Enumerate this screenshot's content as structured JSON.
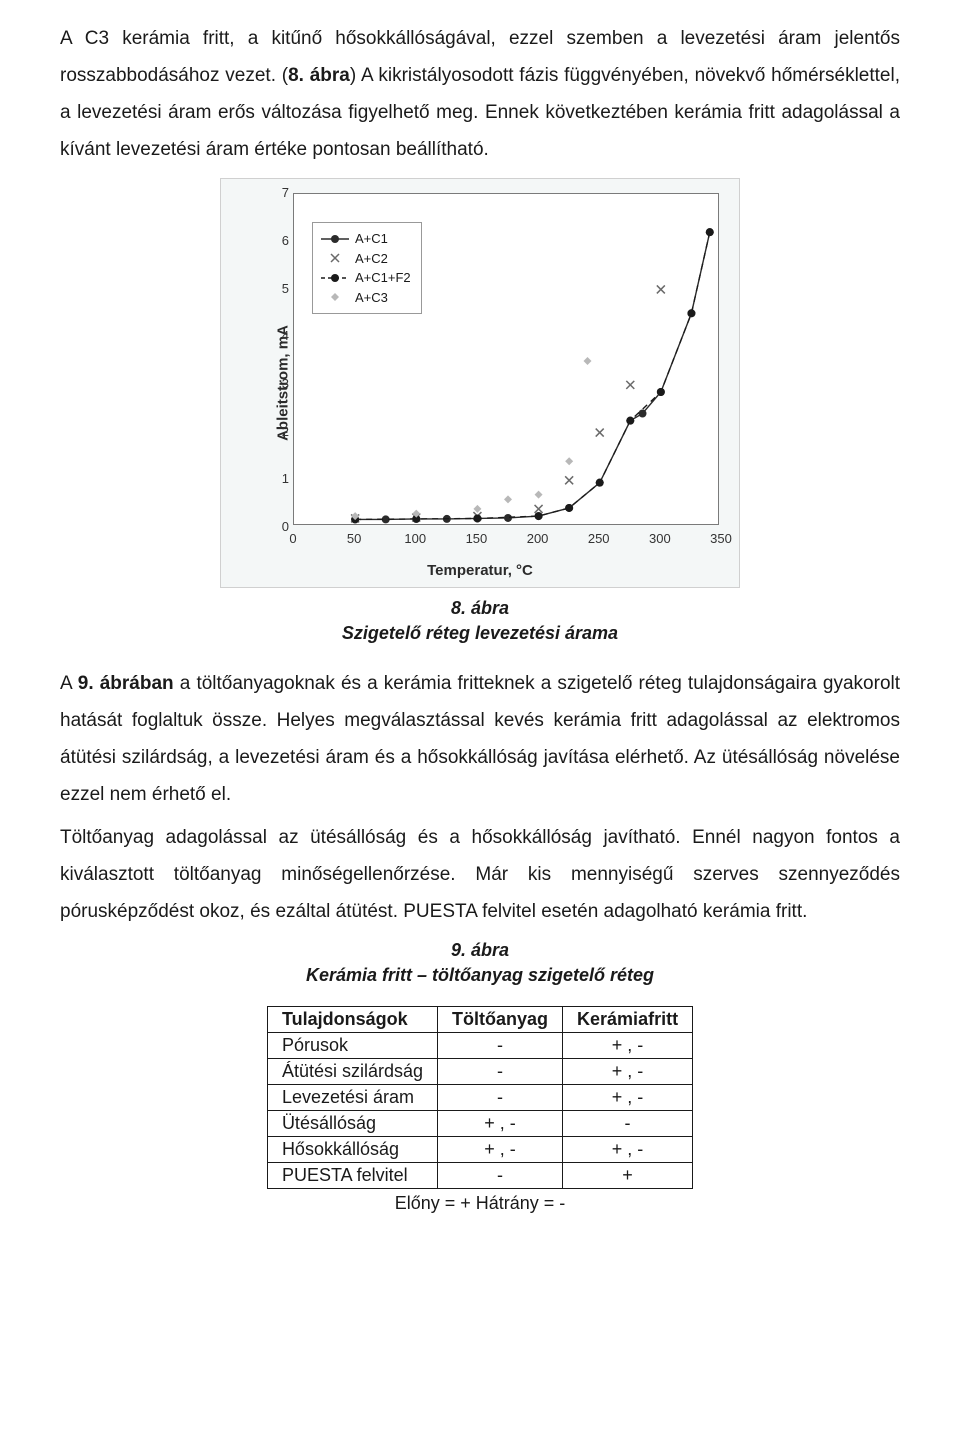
{
  "para1_pre": "A C3 kerámia fritt, a kitűnő hősokkállóságával, ezzel szemben a levezetési áram jelentős rosszabbodásához vezet. (",
  "para1_bold": "8. ábra",
  "para1_post": ") A kikristályosodott fázis függvényében, növekvő hőmérséklettel, a levezetési áram  erős változása figyelhető meg. Ennek következtében kerámia fritt adagolással a kívánt levezetési áram értéke pontosan beállítható.",
  "chart": {
    "type": "scatter-line",
    "background_color": "#f4f7f7",
    "plot_background": "#ffffff",
    "border_color": "#7a7a7a",
    "xlim": [
      0,
      350
    ],
    "ylim": [
      0,
      7
    ],
    "xticks": [
      0,
      50,
      100,
      150,
      200,
      250,
      300,
      350
    ],
    "yticks": [
      0,
      1,
      2,
      3,
      4,
      5,
      6,
      7
    ],
    "xlabel": "Temperatur, °C",
    "ylabel": "Ableitstrom, mA",
    "label_fontsize": 15,
    "tick_fontsize": 13,
    "series": [
      {
        "name": "A+C1",
        "marker": "filled-circle",
        "line": "solid",
        "color": "#2b2b2b",
        "points": [
          [
            50,
            0.18
          ],
          [
            75,
            0.18
          ],
          [
            100,
            0.19
          ],
          [
            125,
            0.19
          ],
          [
            150,
            0.2
          ],
          [
            175,
            0.21
          ],
          [
            200,
            0.25
          ],
          [
            225,
            0.42
          ],
          [
            250,
            0.95
          ],
          [
            275,
            2.25
          ],
          [
            285,
            2.4
          ],
          [
            300,
            2.85
          ],
          [
            325,
            4.5
          ],
          [
            340,
            6.2
          ]
        ]
      },
      {
        "name": "A+C2",
        "marker": "x",
        "line": "none",
        "color": "#6a6a6a",
        "points": [
          [
            50,
            0.2
          ],
          [
            100,
            0.22
          ],
          [
            150,
            0.25
          ],
          [
            200,
            0.4
          ],
          [
            225,
            1.0
          ],
          [
            250,
            2.0
          ],
          [
            275,
            3.0
          ],
          [
            300,
            5.0
          ]
        ]
      },
      {
        "name": "A+C1+F2",
        "marker": "filled-circle",
        "line": "dashed",
        "color": "#1a1a1a",
        "points": [
          [
            50,
            0.18
          ],
          [
            100,
            0.19
          ],
          [
            150,
            0.2
          ],
          [
            200,
            0.25
          ],
          [
            225,
            0.42
          ],
          [
            250,
            0.95
          ],
          [
            275,
            2.25
          ],
          [
            300,
            2.85
          ],
          [
            325,
            4.5
          ],
          [
            340,
            6.2
          ]
        ]
      },
      {
        "name": "A+C3",
        "marker": "diamond",
        "line": "none",
        "color": "#b8b8b8",
        "points": [
          [
            50,
            0.25
          ],
          [
            100,
            0.3
          ],
          [
            150,
            0.4
          ],
          [
            175,
            0.6
          ],
          [
            200,
            0.7
          ],
          [
            225,
            1.4
          ],
          [
            240,
            3.5
          ]
        ]
      }
    ],
    "legend": {
      "position": "upper-left-inside-plot",
      "border_color": "#999999",
      "background": "#ffffff"
    }
  },
  "caption1_line1": "8. ábra",
  "caption1_line2": "Szigetelő réteg levezetési árama",
  "para2_pre": "A ",
  "para2_bold": "9. ábrában",
  "para2_post": " a töltőanyagoknak és a kerámia fritteknek a szigetelő réteg tulajdonságaira gyakorolt hatását foglaltuk össze. Helyes megválasztással kevés kerámia fritt adagolással az elektromos átütési szilárdság, a levezetési áram és a hősokkállóság javítása elérhető. Az ütésállóság növelése ezzel nem érhető el.",
  "para3": "Töltőanyag adagolással az ütésállóság és a hősokkállóság javítható. Ennél nagyon fontos a kiválasztott töltőanyag minőségellenőrzése. Már kis mennyiségű szerves szennyeződés pórusképződést okoz, és  ezáltal  átütést.  PUESTA felvitel esetén adagolható kerámia fritt.",
  "caption2_line1": "9. ábra",
  "caption2_line2": "Kerámia fritt – töltőanyag szigetelő réteg",
  "table": {
    "columns": [
      "Tulajdonságok",
      "Töltőanyag",
      "Kerámiafritt"
    ],
    "col_align": [
      "left",
      "center",
      "center"
    ],
    "rows": [
      [
        "Pórusok",
        "-",
        "+ , -"
      ],
      [
        "Átütési szilárdság",
        "-",
        "+ , -"
      ],
      [
        "Levezetési áram",
        "-",
        "+ , -"
      ],
      [
        "Ütésállóság",
        "+ , -",
        "-"
      ],
      [
        "Hősokkállóság",
        "+ , -",
        "+ , -"
      ],
      [
        "PUESTA felvitel",
        "-",
        "+"
      ]
    ]
  },
  "legend_line": "Előny  =  +          Hátrány =  -"
}
